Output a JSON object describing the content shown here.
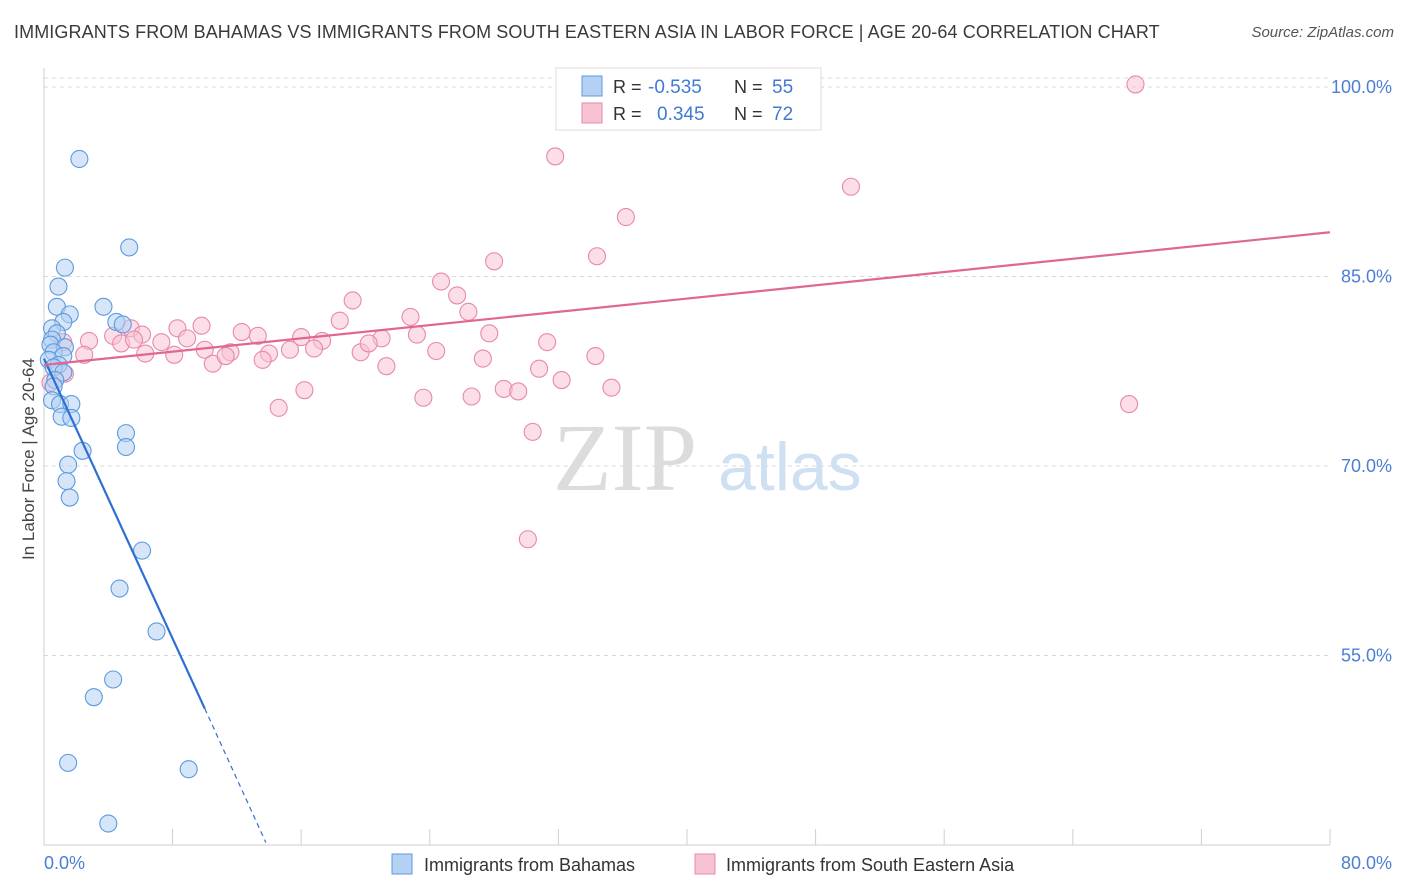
{
  "header": {
    "title": "IMMIGRANTS FROM BAHAMAS VS IMMIGRANTS FROM SOUTH EASTERN ASIA IN LABOR FORCE | AGE 20-64 CORRELATION CHART",
    "source": "Source: ZipAtlas.com"
  },
  "watermark": {
    "zip": "ZIP",
    "atlas": "atlas"
  },
  "colors": {
    "blue": "#5b9be0",
    "blue_fill": "#b5d0f2",
    "blue_line": "#2f6fd1",
    "pink": "#e889a8",
    "pink_fill": "#f7c3d3",
    "pink_line": "#e0678f",
    "tick_label": "#4a7fd4",
    "grid": "#d8d8d8"
  },
  "legend": {
    "rows": [
      {
        "r_label": "R =",
        "r_value": "-0.535",
        "n_label": "N =",
        "n_value": "55"
      },
      {
        "r_label": "R =",
        "r_value": "0.345",
        "n_label": "N =",
        "n_value": "72"
      }
    ]
  },
  "chart_data": {
    "type": "scatter",
    "title": "IMMIGRANTS FROM BAHAMAS VS IMMIGRANTS FROM SOUTH EASTERN ASIA IN LABOR FORCE | AGE 20-64 CORRELATION CHART",
    "xlabel": "",
    "ylabel": "In Labor Force | Age 20-64",
    "xlim": [
      0,
      80
    ],
    "ylim": [
      40,
      101.5
    ],
    "x_tick_labels": [
      "0.0%",
      "80.0%"
    ],
    "y_ticks": [
      55,
      70,
      85,
      100
    ],
    "y_tick_labels": [
      "55.0%",
      "70.0%",
      "85.0%",
      "100.0%"
    ],
    "grid": "horizontal dashed",
    "legend_position": "top-center",
    "series": [
      {
        "name": "Immigrants from Bahamas",
        "r": -0.535,
        "n": 55,
        "trend": {
          "x0": 0.0,
          "y0": 78.5,
          "x1": 10.0,
          "y1": 50.8,
          "dashed_to_x": 13.8,
          "dashed_to_y": 40.2
        },
        "points": [
          [
            2.2,
            94.3
          ],
          [
            5.3,
            87.3
          ],
          [
            1.3,
            85.7
          ],
          [
            0.9,
            84.2
          ],
          [
            0.8,
            82.6
          ],
          [
            3.7,
            82.6
          ],
          [
            1.6,
            82.0
          ],
          [
            1.2,
            81.4
          ],
          [
            4.5,
            81.4
          ],
          [
            0.5,
            80.9
          ],
          [
            4.9,
            81.2
          ],
          [
            0.8,
            80.5
          ],
          [
            0.5,
            80.0
          ],
          [
            0.4,
            79.6
          ],
          [
            1.3,
            79.4
          ],
          [
            0.6,
            79.0
          ],
          [
            1.2,
            78.7
          ],
          [
            0.3,
            78.4
          ],
          [
            0.9,
            78.0
          ],
          [
            0.6,
            77.8
          ],
          [
            1.2,
            77.4
          ],
          [
            0.7,
            76.8
          ],
          [
            0.6,
            76.3
          ],
          [
            0.5,
            75.2
          ],
          [
            1.0,
            74.9
          ],
          [
            1.7,
            74.9
          ],
          [
            1.1,
            73.9
          ],
          [
            1.7,
            73.8
          ],
          [
            5.1,
            72.6
          ],
          [
            5.1,
            71.5
          ],
          [
            2.4,
            71.2
          ],
          [
            1.5,
            70.1
          ],
          [
            1.4,
            68.8
          ],
          [
            1.6,
            67.5
          ],
          [
            6.1,
            63.3
          ],
          [
            4.7,
            60.3
          ],
          [
            7.0,
            56.9
          ],
          [
            4.3,
            53.1
          ],
          [
            3.1,
            51.7
          ],
          [
            1.5,
            46.5
          ],
          [
            9.0,
            46.0
          ],
          [
            4.0,
            41.7
          ]
        ]
      },
      {
        "name": "Immigrants from South Eastern Asia",
        "r": 0.345,
        "n": 72,
        "trend": {
          "x0": 0.0,
          "y0": 78.0,
          "x1": 80.0,
          "y1": 88.5
        },
        "points": [
          [
            67.9,
            100.2
          ],
          [
            45.8,
            100.2
          ],
          [
            31.8,
            94.5
          ],
          [
            50.2,
            92.1
          ],
          [
            36.2,
            89.7
          ],
          [
            34.4,
            86.6
          ],
          [
            28.0,
            86.2
          ],
          [
            24.7,
            84.6
          ],
          [
            25.7,
            83.5
          ],
          [
            19.2,
            83.1
          ],
          [
            26.4,
            82.2
          ],
          [
            22.8,
            81.8
          ],
          [
            18.4,
            81.5
          ],
          [
            27.7,
            80.5
          ],
          [
            5.4,
            80.9
          ],
          [
            8.3,
            80.9
          ],
          [
            9.8,
            81.1
          ],
          [
            12.3,
            80.6
          ],
          [
            4.3,
            80.3
          ],
          [
            6.1,
            80.4
          ],
          [
            8.9,
            80.1
          ],
          [
            13.3,
            80.3
          ],
          [
            16.0,
            80.2
          ],
          [
            17.3,
            79.9
          ],
          [
            21.0,
            80.1
          ],
          [
            23.2,
            80.4
          ],
          [
            1.2,
            79.8
          ],
          [
            2.8,
            79.9
          ],
          [
            4.8,
            79.7
          ],
          [
            5.6,
            80.0
          ],
          [
            7.3,
            79.8
          ],
          [
            10.0,
            79.2
          ],
          [
            11.6,
            79.0
          ],
          [
            14.0,
            78.9
          ],
          [
            15.3,
            79.2
          ],
          [
            16.8,
            79.3
          ],
          [
            19.7,
            79.0
          ],
          [
            24.4,
            79.1
          ],
          [
            31.3,
            79.8
          ],
          [
            34.3,
            78.7
          ],
          [
            6.3,
            78.9
          ],
          [
            8.1,
            78.8
          ],
          [
            10.5,
            78.1
          ],
          [
            11.3,
            78.7
          ],
          [
            13.6,
            78.4
          ],
          [
            20.2,
            79.7
          ],
          [
            27.3,
            78.5
          ],
          [
            30.8,
            77.7
          ],
          [
            21.3,
            77.9
          ],
          [
            32.2,
            76.8
          ],
          [
            1.3,
            77.3
          ],
          [
            0.4,
            76.6
          ],
          [
            16.2,
            76.0
          ],
          [
            23.6,
            75.4
          ],
          [
            26.6,
            75.5
          ],
          [
            28.6,
            76.1
          ],
          [
            29.5,
            75.9
          ],
          [
            35.3,
            76.2
          ],
          [
            14.6,
            74.6
          ],
          [
            30.4,
            72.7
          ],
          [
            67.5,
            74.9
          ],
          [
            30.1,
            64.2
          ],
          [
            2.5,
            78.8
          ]
        ]
      }
    ]
  },
  "legend_bottom": [
    {
      "label": "Immigrants from Bahamas"
    },
    {
      "label": "Immigrants from South Eastern Asia"
    }
  ]
}
